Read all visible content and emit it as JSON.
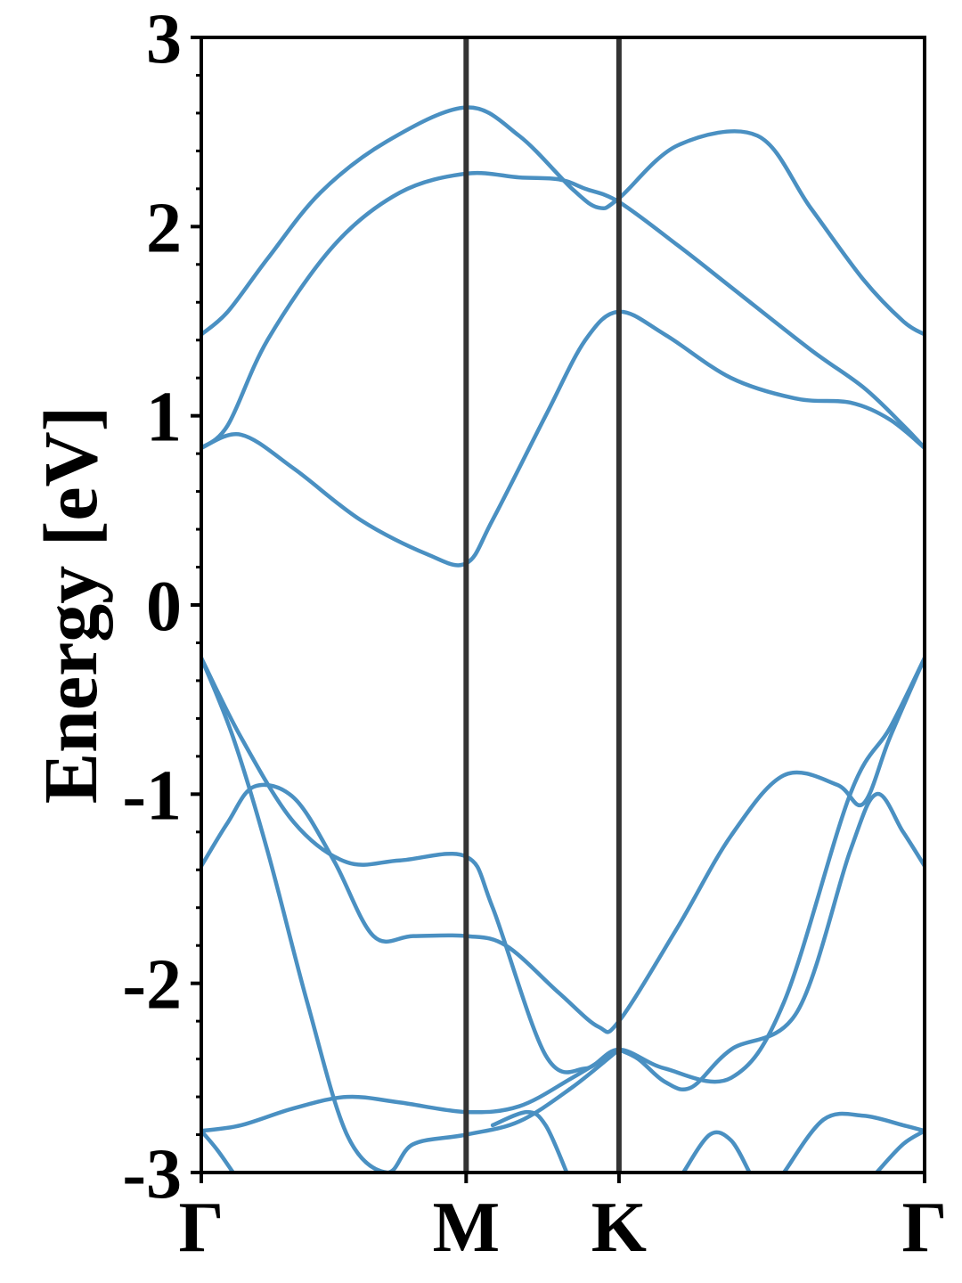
{
  "chart_data": {
    "type": "line",
    "title": "",
    "xlabel": "",
    "ylabel": "Energy [eV]",
    "ylim": [
      -3,
      3
    ],
    "yticks": [
      "3",
      "2",
      "1",
      "0",
      "-1",
      "-2",
      "-3"
    ],
    "yticks_values": [
      3,
      2,
      1,
      0,
      -1,
      -2,
      -3
    ],
    "minor_yticks_per_interval": 4,
    "grid": false,
    "legend": "none",
    "line_color": "#4a90c2",
    "kpath": {
      "labels": [
        "Γ",
        "M",
        "K",
        "Γ"
      ],
      "positions": [
        0,
        1,
        1.577,
        2.731
      ]
    },
    "series": [
      {
        "x": [
          0,
          0.1,
          0.25,
          0.45,
          0.7,
          1.0,
          1.2,
          1.4,
          1.5,
          1.577,
          1.8,
          2.1,
          2.3,
          2.5,
          2.65,
          2.731
        ],
        "values": [
          1.43,
          1.55,
          1.83,
          2.18,
          2.45,
          2.63,
          2.48,
          2.2,
          2.1,
          2.15,
          2.43,
          2.48,
          2.1,
          1.72,
          1.5,
          1.43
        ]
      },
      {
        "x": [
          0,
          0.1,
          0.25,
          0.5,
          0.75,
          1.0,
          1.2,
          1.35,
          1.45,
          1.577,
          1.8,
          2.0,
          2.3,
          2.5,
          2.65,
          2.731
        ],
        "values": [
          0.83,
          0.95,
          1.4,
          1.9,
          2.18,
          2.28,
          2.26,
          2.25,
          2.2,
          2.13,
          1.9,
          1.68,
          1.35,
          1.15,
          0.95,
          0.83
        ]
      },
      {
        "x": [
          0,
          0.15,
          0.35,
          0.6,
          0.85,
          1.0,
          1.1,
          1.3,
          1.45,
          1.577,
          1.75,
          2.0,
          2.25,
          2.45,
          2.6,
          2.731
        ],
        "values": [
          0.83,
          0.9,
          0.72,
          0.45,
          0.27,
          0.22,
          0.45,
          1.0,
          1.4,
          1.55,
          1.43,
          1.2,
          1.09,
          1.07,
          0.98,
          0.83
        ]
      },
      {
        "x": [
          0,
          0.15,
          0.35,
          0.55,
          0.75,
          1.0,
          1.1,
          1.3,
          1.45,
          1.577,
          1.75,
          2.0,
          2.2,
          2.45,
          2.6,
          2.731
        ],
        "values": [
          -0.28,
          -0.7,
          -1.15,
          -1.36,
          -1.35,
          -1.33,
          -1.6,
          -2.38,
          -2.45,
          -2.35,
          -2.45,
          -2.5,
          -2.1,
          -1.0,
          -0.65,
          -0.28
        ]
      },
      {
        "x": [
          0,
          0.1,
          0.2,
          0.35,
          0.5,
          0.65,
          0.8,
          1.0,
          1.15,
          1.35,
          1.5,
          1.577,
          1.8,
          2.0,
          2.2,
          2.4,
          2.5,
          2.6,
          2.731
        ],
        "values": [
          -1.38,
          -1.15,
          -0.96,
          -1.02,
          -1.35,
          -1.75,
          -1.75,
          -1.75,
          -1.8,
          -2.05,
          -2.23,
          -2.2,
          -1.7,
          -1.22,
          -0.9,
          -0.95,
          -1.05,
          -0.7,
          -0.28
        ]
      },
      {
        "x": [
          0,
          0.12,
          0.25,
          0.4,
          0.55,
          0.7,
          0.8,
          1.0,
          1.2,
          1.4,
          1.577
        ],
        "values": [
          -0.28,
          -0.7,
          -1.3,
          -2.1,
          -2.8,
          -3.0,
          -2.85,
          -2.8,
          -2.73,
          -2.55,
          -2.35
        ]
      },
      {
        "x": [
          1.577,
          1.65,
          1.75,
          1.85,
          2.0,
          2.25,
          2.45,
          2.55,
          2.65,
          2.731
        ],
        "values": [
          -2.35,
          -2.4,
          -2.52,
          -2.55,
          -2.35,
          -2.15,
          -1.3,
          -1.0,
          -1.2,
          -1.38
        ]
      },
      {
        "x": [
          0,
          0.15,
          0.35,
          0.55,
          0.75,
          1.0,
          1.2,
          1.4,
          1.577
        ],
        "values": [
          -2.78,
          -2.75,
          -2.66,
          -2.6,
          -2.63,
          -2.68,
          -2.65,
          -2.5,
          -2.35
        ]
      },
      {
        "x": [
          0,
          0.06,
          0.12
        ],
        "values": [
          -2.78,
          -2.88,
          -3.0
        ]
      },
      {
        "x": [
          1.1,
          1.23,
          1.3,
          1.38
        ],
        "values": [
          -2.75,
          -2.68,
          -2.75,
          -3.0
        ]
      },
      {
        "x": [
          1.82,
          1.92,
          2.0,
          2.07
        ],
        "values": [
          -3.0,
          -2.8,
          -2.83,
          -3.0
        ]
      },
      {
        "x": [
          2.2,
          2.35,
          2.5,
          2.65,
          2.731
        ],
        "values": [
          -3.0,
          -2.72,
          -2.7,
          -2.75,
          -2.78
        ]
      },
      {
        "x": [
          2.55,
          2.65,
          2.731
        ],
        "values": [
          -3.0,
          -2.85,
          -2.78
        ]
      }
    ]
  }
}
